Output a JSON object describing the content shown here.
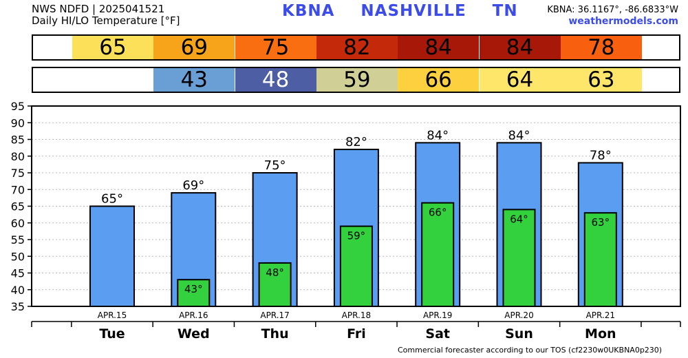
{
  "header": {
    "line1": "NWS NDFD | 2025041521",
    "line2": "Daily HI/LO Temperature [°F]",
    "station_code": "KBNA",
    "station_name": "NASHVILLE",
    "state": "TN",
    "coords": "KBNA: 36.1167°, -86.6833°W",
    "site": "weathermodels.com"
  },
  "hi_strip": [
    {
      "value": "65",
      "color": "#fde05a"
    },
    {
      "value": "69",
      "color": "#f8a41b"
    },
    {
      "value": "75",
      "color": "#f86e10"
    },
    {
      "value": "82",
      "color": "#c42a0a"
    },
    {
      "value": "84",
      "color": "#a81808"
    },
    {
      "value": "84",
      "color": "#a81808"
    },
    {
      "value": "78",
      "color": "#f86010"
    }
  ],
  "lo_strip": [
    {
      "value": "",
      "color": "#ffffff"
    },
    {
      "value": "43",
      "color": "#6a9fd6"
    },
    {
      "value": "48",
      "color": "#4e5ea4",
      "text_color": "#ffffff"
    },
    {
      "value": "59",
      "color": "#cfcf96"
    },
    {
      "value": "66",
      "color": "#fdd040"
    },
    {
      "value": "64",
      "color": "#fde66a"
    },
    {
      "value": "63",
      "color": "#fde66a"
    }
  ],
  "chart_data": {
    "type": "bar",
    "categories": [
      "Tue",
      "Wed",
      "Thu",
      "Fri",
      "Sat",
      "Sun",
      "Mon"
    ],
    "dates": [
      "APR.15",
      "APR.16",
      "APR.17",
      "APR.18",
      "APR.19",
      "APR.20",
      "APR.21"
    ],
    "series": [
      {
        "values": [
          65,
          69,
          75,
          82,
          84,
          84,
          78
        ],
        "color": "#5b9df0"
      },
      {
        "values": [
          null,
          43,
          48,
          59,
          66,
          64,
          63
        ],
        "color": "#33d13e"
      }
    ],
    "hi_labels": [
      "65°",
      "69°",
      "75°",
      "82°",
      "84°",
      "84°",
      "78°"
    ],
    "lo_labels": [
      "",
      "43°",
      "48°",
      "59°",
      "66°",
      "64°",
      "63°"
    ],
    "ylim": [
      35,
      95
    ],
    "yticks": [
      35,
      40,
      45,
      50,
      55,
      60,
      65,
      70,
      75,
      80,
      85,
      90,
      95
    ],
    "grid": true
  },
  "footer": {
    "note": "Commercial forecaster according to our TOS (cf2230w0UKBNA0p230)"
  }
}
